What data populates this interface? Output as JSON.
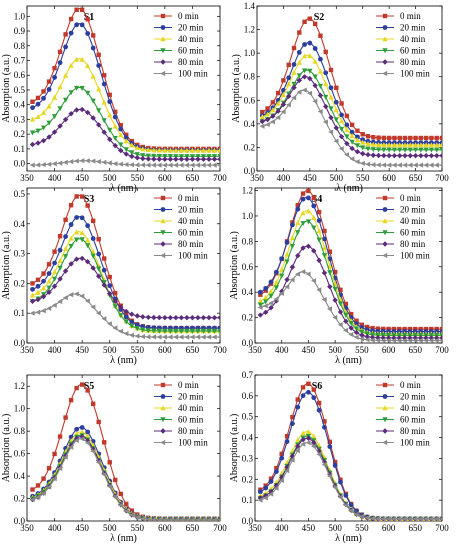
{
  "chart_data": [
    {
      "type": "line",
      "title": "S1",
      "xlabel": "λ (nm)",
      "ylabel": "Absorption (a.u.)",
      "xlim": [
        350,
        700
      ],
      "ylim": [
        -0.05,
        1.07
      ],
      "xticks": [
        "350",
        "400",
        "450",
        "500",
        "550",
        "600",
        "650",
        "700"
      ],
      "yticks": [
        "0.0",
        "0.1",
        "0.2",
        "0.3",
        "0.4",
        "0.5",
        "0.6",
        "0.7",
        "0.8",
        "0.9",
        "1.0"
      ],
      "legend_position": "top-right",
      "grid": false,
      "series": [
        {
          "name": "0 min",
          "peak": 1.02,
          "base": 0.1,
          "left": 0.42
        },
        {
          "name": "20 min",
          "peak": 0.92,
          "base": 0.09,
          "left": 0.38
        },
        {
          "name": "40 min",
          "peak": 0.69,
          "base": 0.09,
          "left": 0.3
        },
        {
          "name": "60 min",
          "peak": 0.5,
          "base": 0.05,
          "left": 0.21
        },
        {
          "name": "80 min",
          "peak": 0.36,
          "base": 0.03,
          "left": 0.13
        },
        {
          "name": "100 min",
          "peak": 0.02,
          "base": -0.01,
          "left": -0.01
        }
      ]
    },
    {
      "type": "line",
      "title": "S2",
      "xlabel": "λ (nm)",
      "ylabel": "Absorption (a.u.)",
      "xlim": [
        350,
        700
      ],
      "ylim": [
        0.0,
        1.4
      ],
      "xticks": [
        "350",
        "400",
        "450",
        "500",
        "550",
        "600",
        "650",
        "700"
      ],
      "yticks": [
        "0.0",
        "0.2",
        "0.4",
        "0.6",
        "0.8",
        "1.0",
        "1.2",
        "1.4"
      ],
      "legend_position": "top-right",
      "grid": false,
      "series": [
        {
          "name": "0 min",
          "peak": 1.28,
          "base": 0.28,
          "left": 0.5
        },
        {
          "name": "20 min",
          "peak": 1.07,
          "base": 0.24,
          "left": 0.47
        },
        {
          "name": "40 min",
          "peak": 0.96,
          "base": 0.22,
          "left": 0.46
        },
        {
          "name": "60 min",
          "peak": 0.83,
          "base": 0.18,
          "left": 0.42
        },
        {
          "name": "80 min",
          "peak": 0.76,
          "base": 0.13,
          "left": 0.42
        },
        {
          "name": "100 min",
          "peak": 0.63,
          "base": 0.05,
          "left": 0.38
        }
      ]
    },
    {
      "type": "line",
      "title": "S3",
      "xlabel": "λ (nm)",
      "ylabel": "Absorption (a.u.)",
      "xlim": [
        350,
        700
      ],
      "ylim": [
        0.0,
        0.52
      ],
      "xticks": [
        "350",
        "400",
        "450",
        "500",
        "550",
        "600",
        "650",
        "700"
      ],
      "yticks": [
        "0.0",
        "0.1",
        "0.2",
        "0.3",
        "0.4",
        "0.5"
      ],
      "legend_position": "top-right",
      "grid": false,
      "series": [
        {
          "name": "0 min",
          "peak": 0.48,
          "base": 0.05,
          "left": 0.2
        },
        {
          "name": "20 min",
          "peak": 0.41,
          "base": 0.05,
          "left": 0.18
        },
        {
          "name": "40 min",
          "peak": 0.36,
          "base": 0.04,
          "left": 0.16
        },
        {
          "name": "60 min",
          "peak": 0.34,
          "base": 0.04,
          "left": 0.14
        },
        {
          "name": "80 min",
          "peak": 0.28,
          "base": 0.085,
          "left": 0.14
        },
        {
          "name": "100 min",
          "peak": 0.15,
          "base": 0.02,
          "left": 0.1
        }
      ]
    },
    {
      "type": "line",
      "title": "S4",
      "xlabel": "λ (nm)",
      "ylabel": "Absorption (a.u.)",
      "xlim": [
        350,
        700
      ],
      "ylim": [
        0.0,
        1.22
      ],
      "xticks": [
        "350",
        "400",
        "450",
        "500",
        "550",
        "600",
        "650",
        "700"
      ],
      "yticks": [
        "0.0",
        "0.2",
        "0.4",
        "0.6",
        "0.8",
        "1.0",
        "1.2"
      ],
      "legend_position": "top-right",
      "grid": false,
      "series": [
        {
          "name": "0 min",
          "peak": 1.18,
          "base": 0.11,
          "left": 0.38
        },
        {
          "name": "20 min",
          "peak": 1.12,
          "base": 0.09,
          "left": 0.4
        },
        {
          "name": "40 min",
          "peak": 1.02,
          "base": 0.07,
          "left": 0.33
        },
        {
          "name": "60 min",
          "peak": 0.94,
          "base": 0.06,
          "left": 0.3
        },
        {
          "name": "80 min",
          "peak": 0.75,
          "base": 0.04,
          "left": 0.22
        },
        {
          "name": "100 min",
          "peak": 0.52,
          "base": 0.02,
          "left": 0.28
        }
      ]
    },
    {
      "type": "line",
      "title": "S5",
      "xlabel": "λ (nm)",
      "ylabel": "Absorption (a.u.)",
      "xlim": [
        350,
        700
      ],
      "ylim": [
        0.0,
        1.3
      ],
      "xticks": [
        "350",
        "400",
        "450",
        "500",
        "550",
        "600",
        "650",
        "700"
      ],
      "yticks": [
        "0.0",
        "0.2",
        "0.4",
        "0.6",
        "0.8",
        "1.0",
        "1.2"
      ],
      "legend_position": "top-right",
      "grid": false,
      "series": [
        {
          "name": "0 min",
          "peak": 1.2,
          "base": 0.02,
          "left": 0.28
        },
        {
          "name": "20 min",
          "peak": 0.82,
          "base": 0.02,
          "left": 0.22
        },
        {
          "name": "40 min",
          "peak": 0.78,
          "base": 0.02,
          "left": 0.21
        },
        {
          "name": "60 min",
          "peak": 0.75,
          "base": 0.01,
          "left": 0.2
        },
        {
          "name": "80 min",
          "peak": 0.74,
          "base": 0.01,
          "left": 0.19
        },
        {
          "name": "100 min",
          "peak": 0.72,
          "base": 0.01,
          "left": 0.19
        }
      ]
    },
    {
      "type": "line",
      "title": "S6",
      "xlabel": "λ (nm)",
      "ylabel": "Absorption (a.u.)",
      "xlim": [
        350,
        700
      ],
      "ylim": [
        0.0,
        0.7
      ],
      "xticks": [
        "350",
        "400",
        "450",
        "500",
        "550",
        "600",
        "650",
        "700"
      ],
      "yticks": [
        "0.0",
        "0.1",
        "0.2",
        "0.3",
        "0.4",
        "0.5",
        "0.6",
        "0.7"
      ],
      "legend_position": "top-right",
      "grid": false,
      "series": [
        {
          "name": "0 min",
          "peak": 0.65,
          "base": 0.01,
          "left": 0.15
        },
        {
          "name": "20 min",
          "peak": 0.61,
          "base": 0.01,
          "left": 0.14
        },
        {
          "name": "40 min",
          "peak": 0.42,
          "base": 0.01,
          "left": 0.12
        },
        {
          "name": "60 min",
          "peak": 0.4,
          "base": 0.01,
          "left": 0.11
        },
        {
          "name": "80 min",
          "peak": 0.39,
          "base": 0.01,
          "left": 0.11
        },
        {
          "name": "100 min",
          "peak": 0.37,
          "base": 0.01,
          "left": 0.1
        }
      ]
    }
  ],
  "series_colors": [
    "#c0392b",
    "#2c3e9e",
    "#e6d820",
    "#2e9e3a",
    "#5b2c7a",
    "#8a8a8a"
  ],
  "series_markers": [
    "square",
    "circle",
    "triangle-up",
    "triangle-down",
    "diamond",
    "triangle-left"
  ]
}
